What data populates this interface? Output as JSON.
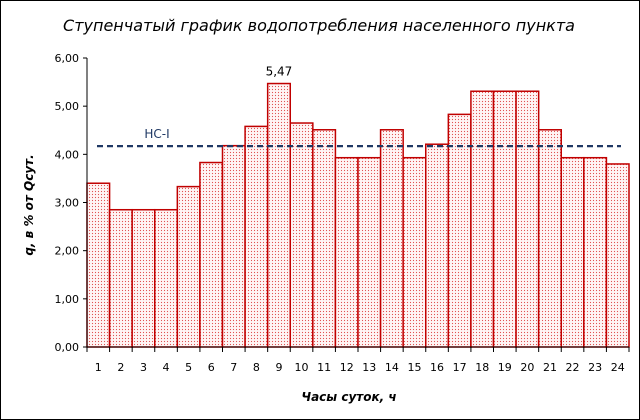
{
  "chart_data": {
    "type": "bar",
    "title": "Ступенчатый график водопотребления населенного пункта",
    "xlabel": "Часы суток, ч",
    "ylabel": "q, в % от Qсут.",
    "categories": [
      "1",
      "2",
      "3",
      "4",
      "5",
      "6",
      "7",
      "8",
      "9",
      "10",
      "11",
      "12",
      "13",
      "14",
      "15",
      "16",
      "17",
      "18",
      "19",
      "20",
      "21",
      "22",
      "23",
      "24"
    ],
    "values": [
      3.4,
      2.85,
      2.85,
      2.85,
      3.33,
      3.83,
      4.18,
      4.58,
      5.47,
      4.65,
      4.51,
      3.93,
      3.93,
      4.51,
      3.93,
      4.21,
      4.83,
      5.31,
      5.31,
      5.31,
      4.51,
      3.93,
      3.93,
      3.8
    ],
    "ylim": [
      0,
      6
    ],
    "yticks": [
      "0,00",
      "1,00",
      "2,00",
      "3,00",
      "4,00",
      "5,00",
      "6,00"
    ],
    "grid": false,
    "bar_color": "#c00000",
    "bar_fill": "#fde9e9",
    "data_labels": [
      {
        "index": 8,
        "text": "5,47"
      }
    ],
    "reference_line": {
      "label": "НС-I",
      "value": 4.17,
      "color": "#1f3864",
      "style": "dashed"
    }
  }
}
